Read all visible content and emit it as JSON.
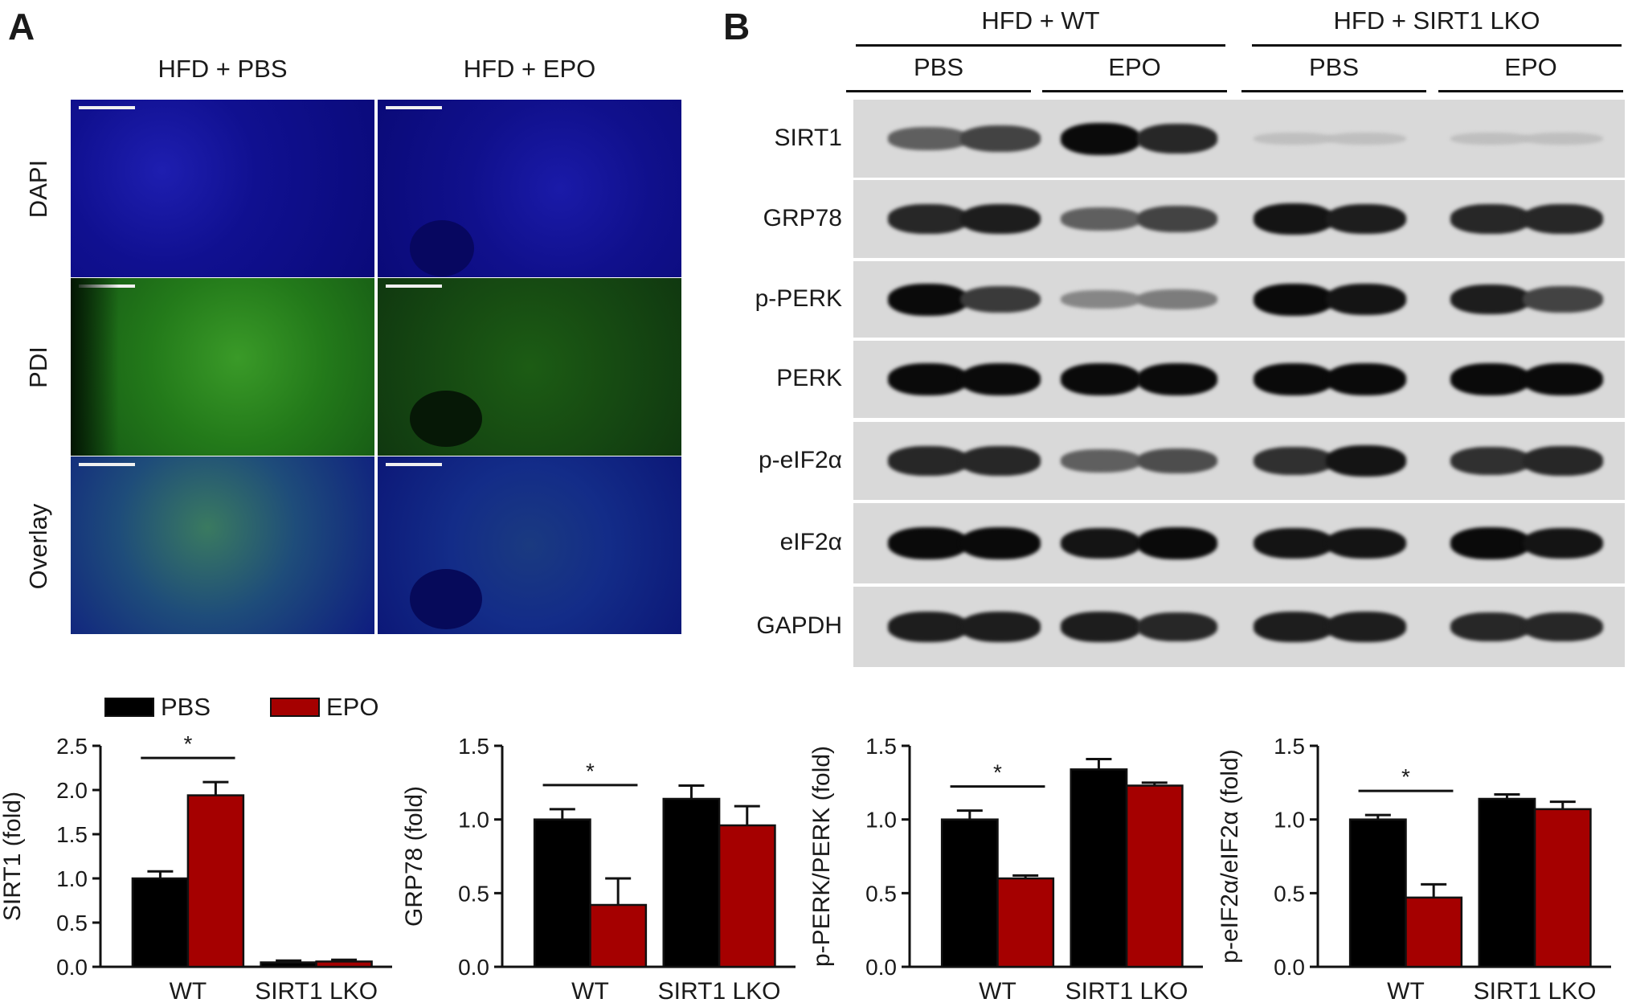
{
  "panel_a": {
    "letter": "A",
    "columns": [
      "HFD + PBS",
      "HFD + EPO"
    ],
    "rows": [
      "DAPI",
      "PDI",
      "Overlay"
    ]
  },
  "panel_b": {
    "letter": "B",
    "groups": [
      "HFD + WT",
      "HFD + SIRT1 LKO"
    ],
    "subgroups": [
      "PBS",
      "EPO",
      "PBS",
      "EPO"
    ],
    "blots": [
      {
        "label": "SIRT1",
        "intensities": [
          0.55,
          0.7,
          1.0,
          0.85,
          0.05,
          0.05,
          0.05,
          0.05
        ]
      },
      {
        "label": "GRP78",
        "intensities": [
          0.85,
          0.9,
          0.55,
          0.7,
          0.95,
          0.9,
          0.85,
          0.85
        ]
      },
      {
        "label": "p-PERK",
        "intensities": [
          1.0,
          0.75,
          0.35,
          0.4,
          1.0,
          0.95,
          0.9,
          0.7
        ]
      },
      {
        "label": "PERK",
        "intensities": [
          1.0,
          1.0,
          1.0,
          1.0,
          1.0,
          1.0,
          1.0,
          1.0
        ]
      },
      {
        "label": "p-eIF2α",
        "intensities": [
          0.85,
          0.85,
          0.55,
          0.65,
          0.8,
          0.95,
          0.8,
          0.85
        ]
      },
      {
        "label": "eIF2α",
        "intensities": [
          1.0,
          1.0,
          0.95,
          1.0,
          0.95,
          0.95,
          1.0,
          0.95
        ]
      },
      {
        "label": "GAPDH",
        "intensities": [
          0.9,
          0.9,
          0.9,
          0.85,
          0.9,
          0.9,
          0.85,
          0.85
        ]
      }
    ]
  },
  "legend": {
    "items": [
      {
        "name": "PBS",
        "color": "#000000"
      },
      {
        "name": "EPO",
        "color": "#a50000"
      }
    ]
  },
  "chart_data": [
    {
      "type": "bar",
      "categories": [
        "WT",
        "SIRT1 LKO"
      ],
      "series": [
        {
          "name": "PBS",
          "values": [
            1.0,
            0.05
          ],
          "errors": [
            0.08,
            0.02
          ]
        },
        {
          "name": "EPO",
          "values": [
            1.94,
            0.06
          ],
          "errors": [
            0.15,
            0.02
          ]
        }
      ],
      "ylabel": "SIRT1 (fold)",
      "ylim": [
        0,
        2.5
      ],
      "yticks": [
        "0.0",
        "0.5",
        "1.0",
        "1.5",
        "2.0",
        "2.5"
      ],
      "significance": {
        "category": "WT",
        "label": "*"
      }
    },
    {
      "type": "bar",
      "categories": [
        "WT",
        "SIRT1 LKO"
      ],
      "series": [
        {
          "name": "PBS",
          "values": [
            1.0,
            1.14
          ],
          "errors": [
            0.07,
            0.09
          ]
        },
        {
          "name": "EPO",
          "values": [
            0.42,
            0.96
          ],
          "errors": [
            0.18,
            0.13
          ]
        }
      ],
      "ylabel": "GRP78 (fold)",
      "ylim": [
        0,
        1.5
      ],
      "yticks": [
        "0.0",
        "0.5",
        "1.0",
        "1.5"
      ],
      "significance": {
        "category": "WT",
        "label": "*"
      }
    },
    {
      "type": "bar",
      "categories": [
        "WT",
        "SIRT1 LKO"
      ],
      "series": [
        {
          "name": "PBS",
          "values": [
            1.0,
            1.34
          ],
          "errors": [
            0.06,
            0.07
          ]
        },
        {
          "name": "EPO",
          "values": [
            0.6,
            1.23
          ],
          "errors": [
            0.02,
            0.02
          ]
        }
      ],
      "ylabel": "p-PERK/PERK (fold)",
      "ylim": [
        0,
        1.5
      ],
      "yticks": [
        "0.0",
        "0.5",
        "1.0",
        "1.5"
      ],
      "significance": {
        "category": "WT",
        "label": "*"
      }
    },
    {
      "type": "bar",
      "categories": [
        "WT",
        "SIRT1 LKO"
      ],
      "series": [
        {
          "name": "PBS",
          "values": [
            1.0,
            1.14
          ],
          "errors": [
            0.03,
            0.03
          ]
        },
        {
          "name": "EPO",
          "values": [
            0.47,
            1.07
          ],
          "errors": [
            0.09,
            0.05
          ]
        }
      ],
      "ylabel": "p-eIF2α/eIF2α (fold)",
      "ylim": [
        0,
        1.5
      ],
      "yticks": [
        "0.0",
        "0.5",
        "1.0",
        "1.5"
      ],
      "significance": {
        "category": "WT",
        "label": "*"
      }
    }
  ]
}
